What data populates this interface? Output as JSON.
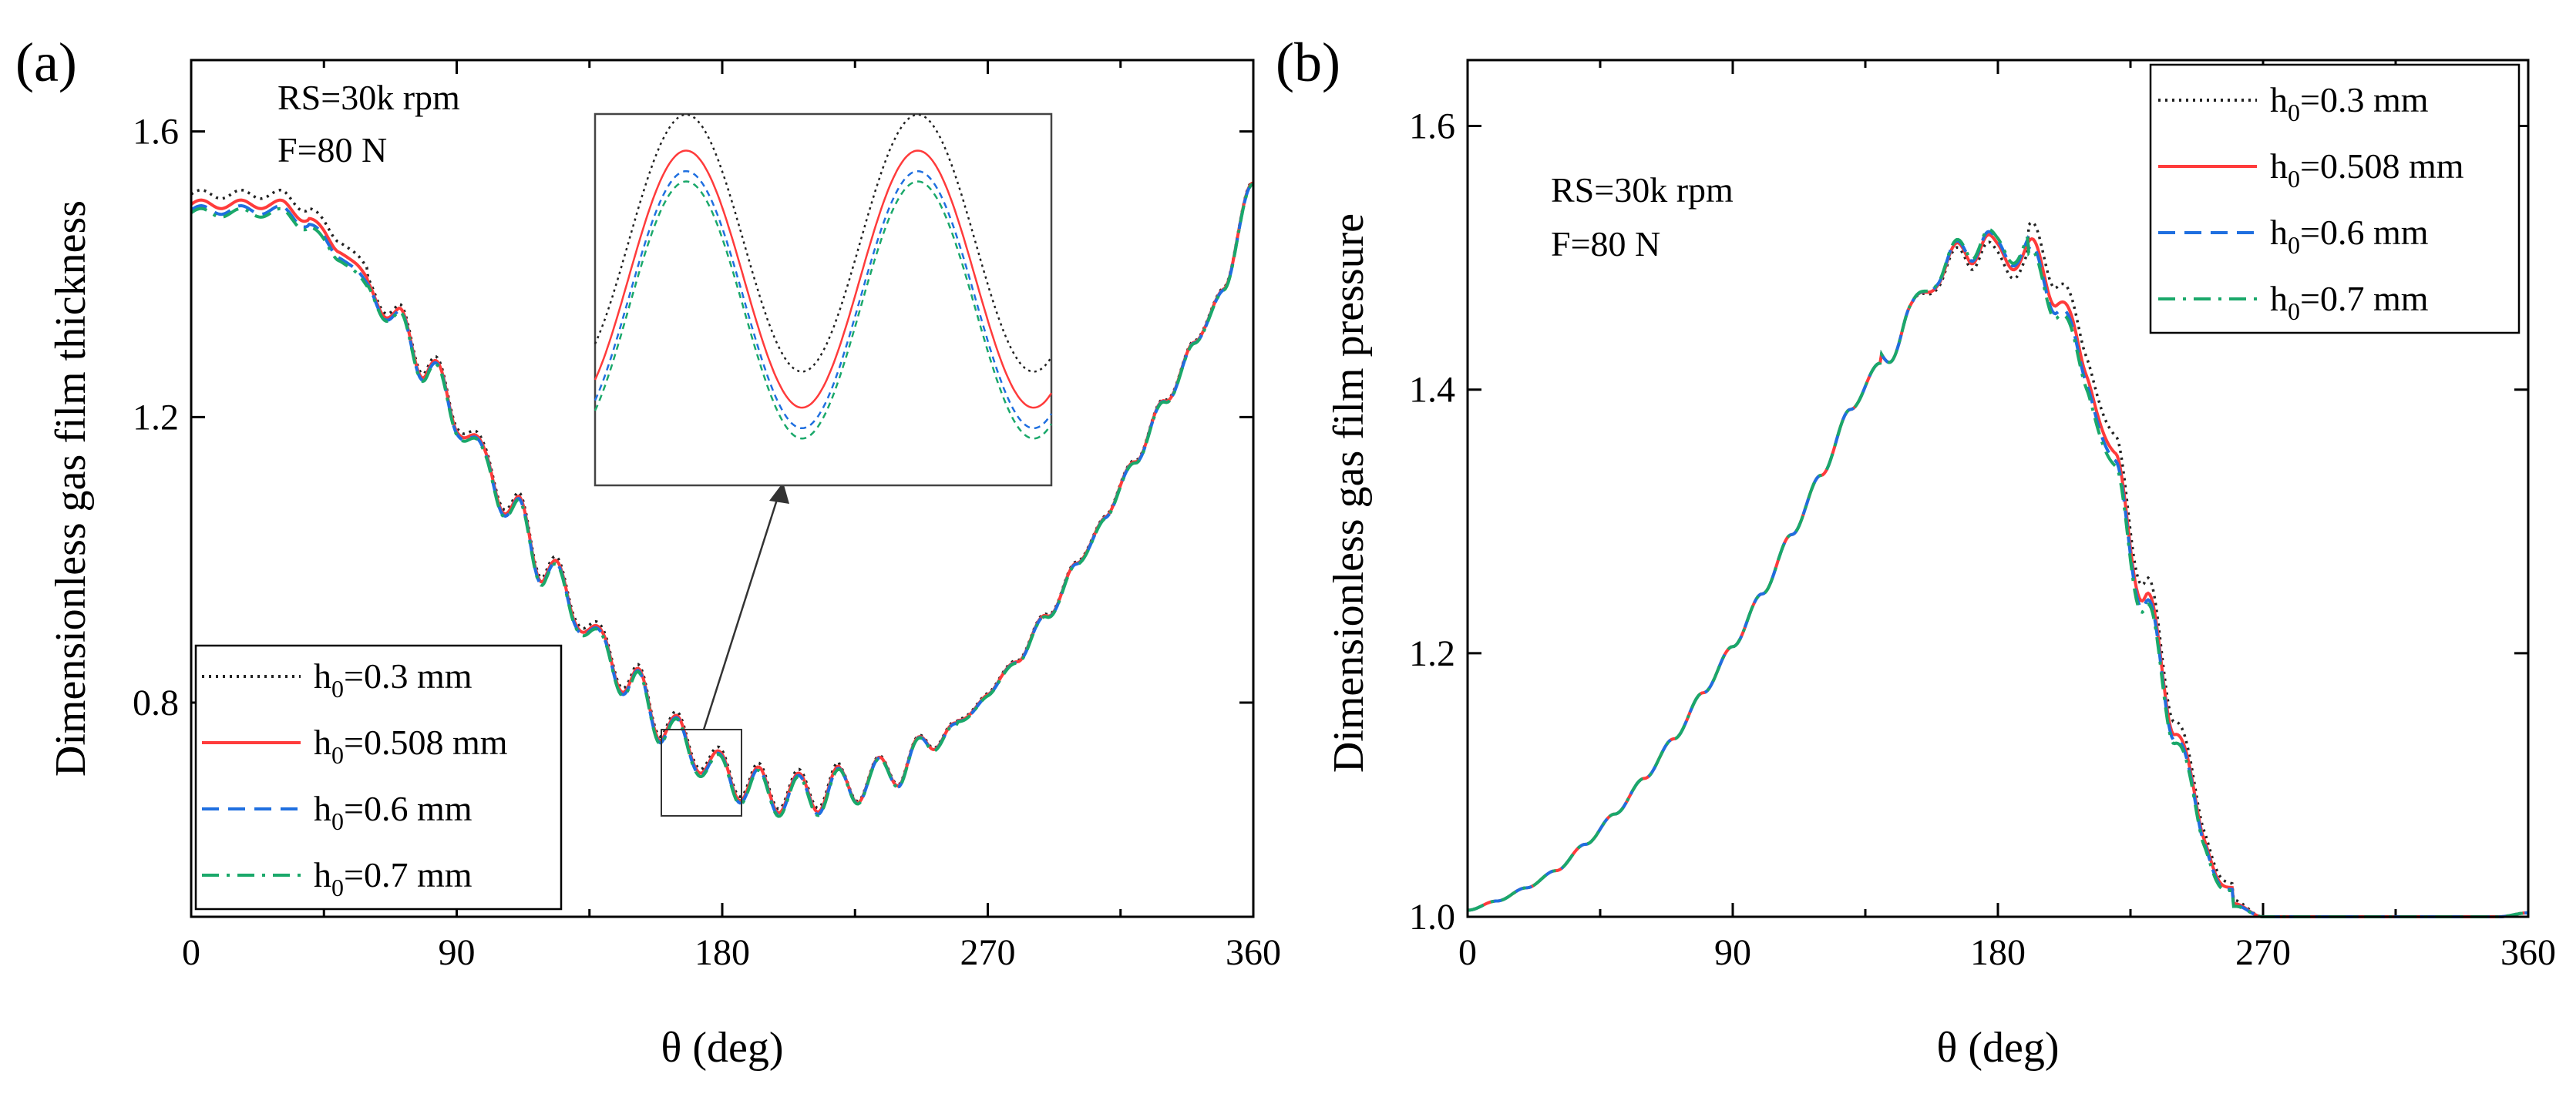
{
  "chart_data": [
    {
      "type": "line",
      "panel_label": "(a)",
      "xlabel": "θ (deg)",
      "ylabel": "Dimensionless gas film thickness",
      "xlim": [
        0,
        360
      ],
      "ylim": [
        0.5,
        1.7
      ],
      "xticks": [
        0,
        90,
        180,
        270,
        360
      ],
      "yticks": [
        0.8,
        1.2,
        1.6
      ],
      "tick_labels_x": [
        "0",
        "90",
        "180",
        "270",
        "360"
      ],
      "tick_labels_y": [
        "0.8",
        "1.2",
        "1.6"
      ],
      "annotations": [
        "RS=30k rpm",
        "F=80 N"
      ],
      "legend_position": "bottom-left",
      "inset": {
        "x_range": [
          158,
          184
        ],
        "y_range": [
          0.645,
          0.775
        ],
        "description": "zoomed view of oscillations near θ=170°"
      },
      "series": [
        {
          "name": "h0=0.3 mm",
          "label_main": "h",
          "label_sub": "0",
          "label_rest": "=0.3 mm",
          "color": "#222222",
          "style": "dotted"
        },
        {
          "name": "h0=0.508 mm",
          "label_main": "h",
          "label_sub": "0",
          "label_rest": "=0.508 mm",
          "color": "#ff3b3b",
          "style": "solid"
        },
        {
          "name": "h0=0.6 mm",
          "label_main": "h",
          "label_sub": "0",
          "label_rest": "=0.6 mm",
          "color": "#1f6fe0",
          "style": "dashed"
        },
        {
          "name": "h0=0.7 mm",
          "label_main": "h",
          "label_sub": "0",
          "label_rest": "=0.7 mm",
          "color": "#1aa86a",
          "style": "dashdot"
        }
      ],
      "base_curve": {
        "x": [
          0,
          10,
          20,
          30,
          40,
          50,
          60,
          70,
          80,
          90,
          100,
          110,
          120,
          130,
          140,
          150,
          160,
          170,
          180,
          190,
          200,
          210,
          220,
          230,
          240,
          250,
          260,
          270,
          280,
          290,
          300,
          310,
          320,
          330,
          340,
          350,
          360
        ],
        "y": [
          1.49,
          1.49,
          1.49,
          1.49,
          1.47,
          1.43,
          1.38,
          1.33,
          1.27,
          1.2,
          1.13,
          1.06,
          0.99,
          0.93,
          0.87,
          0.82,
          0.77,
          0.73,
          0.7,
          0.68,
          0.67,
          0.67,
          0.68,
          0.69,
          0.71,
          0.74,
          0.77,
          0.81,
          0.86,
          0.92,
          0.99,
          1.06,
          1.14,
          1.22,
          1.3,
          1.38,
          1.53
        ]
      }
    },
    {
      "type": "line",
      "panel_label": "(b)",
      "xlabel": "θ (deg)",
      "ylabel": "Dimensionless gas film pressure",
      "xlim": [
        0,
        360
      ],
      "ylim": [
        1.0,
        1.65
      ],
      "xticks": [
        0,
        90,
        180,
        270,
        360
      ],
      "yticks": [
        1.0,
        1.2,
        1.4,
        1.6
      ],
      "tick_labels_x": [
        "0",
        "90",
        "180",
        "270",
        "360"
      ],
      "tick_labels_y": [
        "1.0",
        "1.2",
        "1.4",
        "1.6"
      ],
      "annotations": [
        "RS=30k rpm",
        "F=80 N"
      ],
      "legend_position": "top-right",
      "series": [
        {
          "name": "h0=0.3 mm",
          "label_main": "h",
          "label_sub": "0",
          "label_rest": "=0.3 mm",
          "color": "#222222",
          "style": "dotted"
        },
        {
          "name": "h0=0.508 mm",
          "label_main": "h",
          "label_sub": "0",
          "label_rest": "=0.508 mm",
          "color": "#ff3b3b",
          "style": "solid"
        },
        {
          "name": "h0=0.6 mm",
          "label_main": "h",
          "label_sub": "0",
          "label_rest": "=0.6 mm",
          "color": "#1f6fe0",
          "style": "dashed"
        },
        {
          "name": "h0=0.7 mm",
          "label_main": "h",
          "label_sub": "0",
          "label_rest": "=0.7 mm",
          "color": "#1aa86a",
          "style": "dashdot"
        }
      ],
      "base_curve": {
        "x": [
          0,
          10,
          20,
          30,
          40,
          50,
          60,
          70,
          80,
          90,
          100,
          110,
          120,
          130,
          140,
          150,
          160,
          170,
          175,
          180,
          190,
          200,
          210,
          220,
          230,
          240,
          250,
          260,
          270,
          280,
          290,
          300,
          310,
          320,
          330,
          340,
          350,
          360
        ],
        "y": [
          1.005,
          1.012,
          1.022,
          1.035,
          1.055,
          1.078,
          1.105,
          1.135,
          1.17,
          1.205,
          1.245,
          1.29,
          1.335,
          1.385,
          1.42,
          1.455,
          1.49,
          1.505,
          1.515,
          1.5,
          1.505,
          1.475,
          1.415,
          1.34,
          1.24,
          1.15,
          1.06,
          1.01,
          1.0,
          1.0,
          1.0,
          1.0,
          1.0,
          1.0,
          1.0,
          1.0,
          1.0,
          1.003
        ]
      }
    }
  ]
}
